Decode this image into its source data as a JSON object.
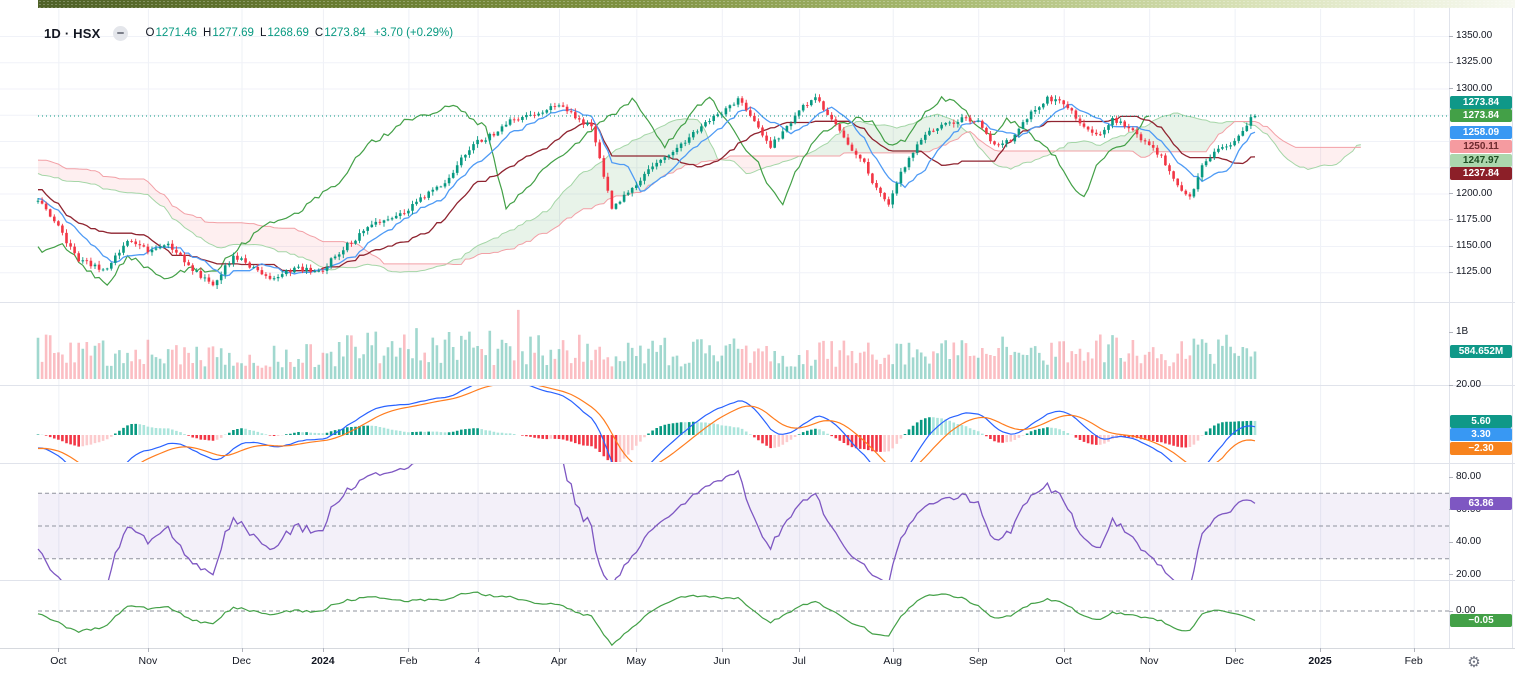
{
  "header": {
    "interval_symbol": "1D · HSX",
    "ohlc": {
      "o_label": "O",
      "o": "1271.46",
      "h_label": "H",
      "h": "1277.69",
      "l_label": "L",
      "l": "1268.69",
      "c_label": "C",
      "c": "1273.84",
      "change": "+3.70 (+0.29%)"
    }
  },
  "colors": {
    "up": "#089981",
    "down": "#f23645",
    "tenkan": "#4f9bf5",
    "kijun": "#8f2430",
    "chikou": "#43a047",
    "lead1": "#a5d6a7",
    "lead2": "#f2a0a6",
    "cloud_up": "rgba(67,160,71,0.12)",
    "cloud_down": "rgba(242,54,69,0.08)",
    "vol_up": "rgba(8,153,129,0.38)",
    "vol_down": "rgba(242,54,69,0.32)",
    "macd_line": "#2962ff",
    "signal_line": "#ff7d1f",
    "hist_up": "#089981",
    "hist_up_weak": "#ace5dc",
    "hist_down": "#f23645",
    "hist_down_weak": "#fccbcd",
    "rsi": "#7e57c2",
    "rsi_band": "rgba(126,87,194,0.09)",
    "osc": "#43a047",
    "grid": "#eef0f6",
    "grid_h": "#f0f2f8",
    "divider": "#e0e3eb",
    "divider_dark": "#d6d9de",
    "level_dash": "#8f939e",
    "axis_text": "#131722",
    "dotted_price": "#089981"
  },
  "price_axis": {
    "labels": [
      {
        "text": "1350.00",
        "scale": "main",
        "value": 1350
      },
      {
        "text": "1325.00",
        "scale": "main",
        "value": 1325
      },
      {
        "text": "1300.00",
        "scale": "main",
        "value": 1300
      },
      {
        "text": "1200.00",
        "scale": "main",
        "value": 1200
      },
      {
        "text": "1175.00",
        "scale": "main",
        "value": 1175
      },
      {
        "text": "1150.00",
        "scale": "main",
        "value": 1150
      },
      {
        "text": "1125.00",
        "scale": "main",
        "value": 1125
      },
      {
        "text": "1B",
        "scale": "vol",
        "value": 1000000000
      },
      {
        "text": "20.00",
        "scale": "macd",
        "value": 20
      },
      {
        "text": "80.00",
        "scale": "rsi",
        "value": 80
      },
      {
        "text": "60.00",
        "scale": "rsi",
        "value": 60
      },
      {
        "text": "40.00",
        "scale": "rsi",
        "value": 40
      },
      {
        "text": "20.00",
        "scale": "rsi",
        "value": 20
      },
      {
        "text": "0.00",
        "scale": "osc",
        "value": 0
      }
    ],
    "badges": [
      {
        "name": "close-price-badge",
        "text": "1273.84",
        "scale": "main",
        "value": 1273.84,
        "offset": -13.8,
        "bg": "#0f9888",
        "fg": "#ffffff"
      },
      {
        "name": "chikou-badge",
        "text": "1273.84",
        "scale": "main",
        "value": 1273.84,
        "bg": "#43a047",
        "fg": "#ffffff"
      },
      {
        "name": "tenkan-badge",
        "text": "1258.09",
        "scale": "main",
        "value": 1258.09,
        "bg": "#3898f3",
        "fg": "#ffffff"
      },
      {
        "name": "senkou-b-badge",
        "text": "1250.11",
        "scale": "main",
        "value": 1250.11,
        "bg": "#f59ba0",
        "fg": "#6e2a2e"
      },
      {
        "name": "senkou-a-badge",
        "text": "1247.97",
        "scale": "main",
        "value": 1247.97,
        "bg": "#abd7ad",
        "fg": "#1d4d21"
      },
      {
        "name": "kijun-badge",
        "text": "1237.84",
        "scale": "main",
        "value": 1237.84,
        "bg": "#8c1f28",
        "fg": "#ffffff"
      },
      {
        "name": "volume-badge",
        "text": "584.652M",
        "scale": "vol",
        "value": 584652000,
        "bg": "#0f9888",
        "fg": "#ffffff"
      },
      {
        "name": "macd-hist-badge",
        "text": "5.60",
        "scale": "macd",
        "value": 5.6,
        "bg": "#0f9888",
        "fg": "#ffffff"
      },
      {
        "name": "macd-line-badge",
        "text": "3.30",
        "scale": "macd",
        "value": 3.3,
        "bg": "#3898f3",
        "fg": "#ffffff"
      },
      {
        "name": "macd-signal-badge",
        "text": "−2.30",
        "scale": "macd",
        "value": -2.3,
        "bg": "#f7831e",
        "fg": "#ffffff"
      },
      {
        "name": "rsi-badge",
        "text": "63.86",
        "scale": "rsi",
        "value": 63.86,
        "bg": "#7e57c2",
        "fg": "#ffffff"
      },
      {
        "name": "oscillator-badge",
        "text": "−0.05",
        "scale": "osc",
        "value": -0.05,
        "bg": "#43a047",
        "fg": "#ffffff"
      }
    ]
  },
  "time_axis": {
    "labels": [
      {
        "text": "Oct",
        "i": 5
      },
      {
        "text": "Nov",
        "i": 27
      },
      {
        "text": "Dec",
        "i": 50
      },
      {
        "text": "2024",
        "i": 70,
        "bold": true
      },
      {
        "text": "Feb",
        "i": 91
      },
      {
        "text": "4",
        "i": 108
      },
      {
        "text": "Apr",
        "i": 128
      },
      {
        "text": "May",
        "i": 147
      },
      {
        "text": "Jun",
        "i": 168
      },
      {
        "text": "Jul",
        "i": 187
      },
      {
        "text": "Aug",
        "i": 210
      },
      {
        "text": "Sep",
        "i": 231
      },
      {
        "text": "Oct",
        "i": 252
      },
      {
        "text": "Nov",
        "i": 273
      },
      {
        "text": "Dec",
        "i": 294
      },
      {
        "text": "2025",
        "i": 315,
        "bold": true
      },
      {
        "text": "Feb",
        "i": 338
      }
    ]
  },
  "settings_icon": "⚙",
  "chart_data": {
    "type": "candlestick",
    "symbol": "HSX",
    "interval": "1D",
    "title": "1D · HSX",
    "last_ohlc": {
      "open": 1271.46,
      "high": 1277.69,
      "low": 1268.69,
      "close": 1273.84,
      "change": 3.7,
      "change_pct": 0.29
    },
    "last_close": 1273.84,
    "pre_window_price": 1252,
    "bars_visible": 300,
    "price_range_visible": [
      1097,
      1376
    ],
    "y_gridline_step": 25,
    "close_waypoints": [
      [
        0,
        1192
      ],
      [
        4,
        1171
      ],
      [
        10,
        1139
      ],
      [
        16,
        1127
      ],
      [
        22,
        1156
      ],
      [
        27,
        1143
      ],
      [
        32,
        1153
      ],
      [
        38,
        1127
      ],
      [
        43,
        1118
      ],
      [
        48,
        1139
      ],
      [
        53,
        1128
      ],
      [
        58,
        1115
      ],
      [
        64,
        1131
      ],
      [
        70,
        1128
      ],
      [
        76,
        1153
      ],
      [
        84,
        1171
      ],
      [
        91,
        1185
      ],
      [
        100,
        1215
      ],
      [
        108,
        1247
      ],
      [
        116,
        1267
      ],
      [
        123,
        1281
      ],
      [
        128,
        1285
      ],
      [
        132,
        1273
      ],
      [
        136,
        1263
      ],
      [
        139,
        1214
      ],
      [
        141,
        1181
      ],
      [
        145,
        1204
      ],
      [
        150,
        1223
      ],
      [
        156,
        1242
      ],
      [
        162,
        1257
      ],
      [
        168,
        1277
      ],
      [
        172,
        1289
      ],
      [
        176,
        1271
      ],
      [
        180,
        1249
      ],
      [
        184,
        1263
      ],
      [
        188,
        1282
      ],
      [
        191,
        1292
      ],
      [
        195,
        1267
      ],
      [
        199,
        1244
      ],
      [
        203,
        1232
      ],
      [
        206,
        1206
      ],
      [
        209,
        1189
      ],
      [
        212,
        1223
      ],
      [
        217,
        1250
      ],
      [
        222,
        1262
      ],
      [
        227,
        1273
      ],
      [
        231,
        1268
      ],
      [
        235,
        1248
      ],
      [
        239,
        1253
      ],
      [
        244,
        1274
      ],
      [
        248,
        1290
      ],
      [
        252,
        1285
      ],
      [
        256,
        1268
      ],
      [
        260,
        1258
      ],
      [
        264,
        1271
      ],
      [
        268,
        1262
      ],
      [
        272,
        1248
      ],
      [
        276,
        1232
      ],
      [
        280,
        1207
      ],
      [
        283,
        1198
      ],
      [
        286,
        1228
      ],
      [
        290,
        1242
      ],
      [
        294,
        1252
      ],
      [
        297,
        1264
      ],
      [
        299,
        1273.84
      ]
    ],
    "volume_profile": [
      [
        0,
        1.15
      ],
      [
        25,
        0.95
      ],
      [
        60,
        0.8
      ],
      [
        90,
        1.25
      ],
      [
        140,
        1.0
      ],
      [
        180,
        0.95
      ],
      [
        215,
        0.9
      ],
      [
        250,
        1.05
      ],
      [
        299,
        1.05
      ]
    ],
    "volume_spikes": {
      "118": 1470000000,
      "299": 584652000
    },
    "indicators": {
      "ichimoku": {
        "conversion_period": 9,
        "base_period": 26,
        "lagging_span_b_period": 52,
        "displacement": 26,
        "last": {
          "conversion": 1258.09,
          "base": 1237.84,
          "lead1": 1247.97,
          "lead2": 1250.11,
          "lagging": 1273.84
        }
      },
      "volume": {
        "last_text": "584.652M",
        "axis_top": "1B"
      },
      "macd": {
        "fast": 12,
        "slow": 26,
        "signal_period": 9,
        "last": {
          "histogram": 5.6,
          "macd": 3.3,
          "signal": -2.3
        }
      },
      "rsi": {
        "period": 14,
        "last": 63.86,
        "levels": [
          70,
          50,
          30
        ],
        "axis": [
          80,
          60,
          40,
          20
        ]
      },
      "oscillator": {
        "last": -0.05,
        "zero_level": 0
      }
    }
  }
}
